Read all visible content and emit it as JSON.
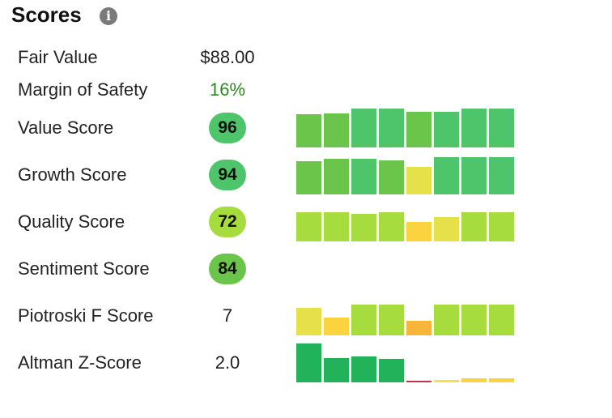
{
  "header": {
    "title": "Scores",
    "info_icon": "info-icon"
  },
  "scores": {
    "fair_value": {
      "label": "Fair Value",
      "value": "$88.00"
    },
    "margin_of_safety": {
      "label": "Margin of Safety",
      "value": "16%",
      "color": "#2c8a1d"
    },
    "value_score": {
      "label": "Value Score",
      "value": "96",
      "badge_color": "#4fc56b",
      "history": [
        {
          "level": 0.85,
          "color": "#6cc54b"
        },
        {
          "level": 0.88,
          "color": "#6cc54b"
        },
        {
          "level": 1.0,
          "color": "#4fc56b"
        },
        {
          "level": 1.0,
          "color": "#4fc56b"
        },
        {
          "level": 0.92,
          "color": "#6cc54b"
        },
        {
          "level": 0.92,
          "color": "#4fc56b"
        },
        {
          "level": 1.0,
          "color": "#4fc56b"
        },
        {
          "level": 1.0,
          "color": "#4fc56b"
        }
      ]
    },
    "growth_score": {
      "label": "Growth Score",
      "value": "94",
      "badge_color": "#4fc56b",
      "history": [
        {
          "level": 0.85,
          "color": "#6cc54b"
        },
        {
          "level": 0.92,
          "color": "#6cc54b"
        },
        {
          "level": 0.92,
          "color": "#4fc56b"
        },
        {
          "level": 0.88,
          "color": "#6cc54b"
        },
        {
          "level": 0.71,
          "color": "#e6e04a"
        },
        {
          "level": 0.96,
          "color": "#4fc56b"
        },
        {
          "level": 0.96,
          "color": "#4fc56b"
        },
        {
          "level": 0.96,
          "color": "#4fc56b"
        }
      ]
    },
    "quality_score": {
      "label": "Quality Score",
      "value": "72",
      "badge_color": "#a6dc3e",
      "history": [
        {
          "level": 0.75,
          "color": "#a6dc3e"
        },
        {
          "level": 0.75,
          "color": "#a6dc3e"
        },
        {
          "level": 0.71,
          "color": "#a6dc3e"
        },
        {
          "level": 0.75,
          "color": "#a6dc3e"
        },
        {
          "level": 0.5,
          "color": "#fbd33f"
        },
        {
          "level": 0.63,
          "color": "#e6e04a"
        },
        {
          "level": 0.75,
          "color": "#a6dc3e"
        },
        {
          "level": 0.75,
          "color": "#a6dc3e"
        }
      ]
    },
    "sentiment_score": {
      "label": "Sentiment Score",
      "value": "84",
      "badge_color": "#6cc54b"
    },
    "piotroski_f_score": {
      "label": "Piotroski F Score",
      "value": "7",
      "history": [
        {
          "level": 0.71,
          "color": "#e6e04a"
        },
        {
          "level": 0.46,
          "color": "#fbd33f"
        },
        {
          "level": 0.79,
          "color": "#a6dc3e"
        },
        {
          "level": 0.79,
          "color": "#a6dc3e"
        },
        {
          "level": 0.38,
          "color": "#f8b53c"
        },
        {
          "level": 0.79,
          "color": "#a6dc3e"
        },
        {
          "level": 0.79,
          "color": "#a6dc3e"
        },
        {
          "level": 0.79,
          "color": "#a6dc3e"
        }
      ]
    },
    "altman_z_score": {
      "label": "Altman Z-Score",
      "value": "2.0",
      "history": [
        {
          "level": 1.0,
          "color": "#22b25a"
        },
        {
          "level": 0.63,
          "color": "#22b25a"
        },
        {
          "level": 0.67,
          "color": "#22b25a"
        },
        {
          "level": 0.6,
          "color": "#22b25a"
        },
        {
          "level": 0.04,
          "color": "#c2364a"
        },
        {
          "level": 0.06,
          "color": "#f0e24a"
        },
        {
          "level": 0.1,
          "color": "#fbd33f"
        },
        {
          "level": 0.1,
          "color": "#fbd33f"
        }
      ]
    }
  }
}
